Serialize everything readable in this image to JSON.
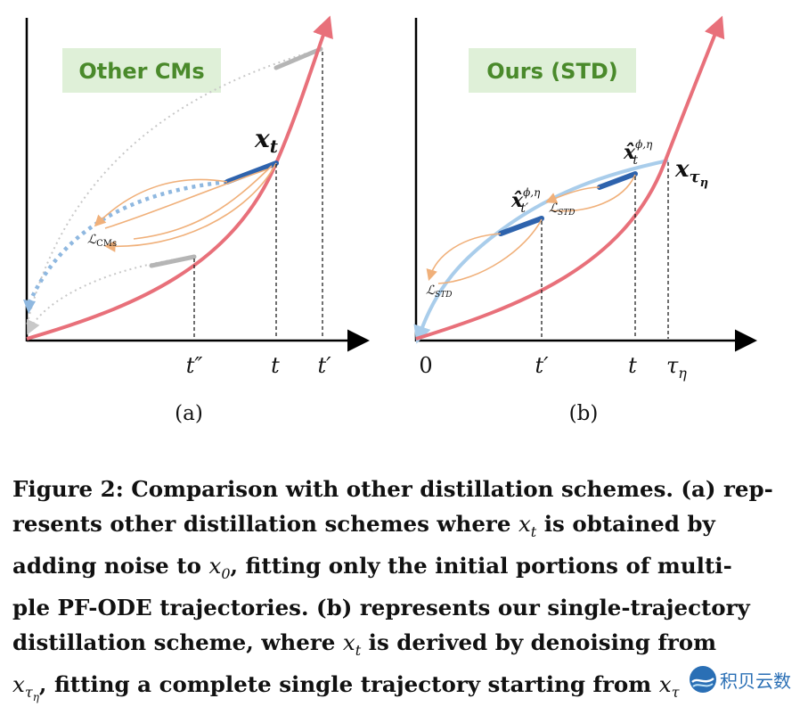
{
  "panel_a": {
    "title": "Other CMs",
    "point_label": "x",
    "point_sub": "t",
    "loss_label": "ℒ",
    "loss_sub": "CMs",
    "ticks": [
      "t″",
      "t",
      "t′"
    ],
    "caption_label": "(a)"
  },
  "panel_b": {
    "title": "Ours (STD)",
    "point_label": "x",
    "point_sub": "τ",
    "point_subsub": "η",
    "est1_label": "x̂",
    "est1_sup": "ϕ,η",
    "est1_sub": "t′",
    "est2_label": "x̂",
    "est2_sup": "ϕ,η",
    "est2_sub": "t",
    "loss_label": "ℒ",
    "loss_sub": "STD",
    "ticks": [
      "0",
      "t′",
      "t",
      "τ"
    ],
    "tau_sub": "η",
    "caption_label": "(b)"
  },
  "caption": {
    "line1_a": "Figure 2: Comparison with other distillation schemes. (a) rep-",
    "line2_a": "resents other distillation schemes where ",
    "line2_m": "x",
    "line2_s": "t",
    "line2_b": " is obtained by",
    "line3_a": "adding noise to ",
    "line3_m": "x",
    "line3_s": "0",
    "line3_b": ", fitting only the initial portions of multi-",
    "line4": "ple PF-ODE trajectories. (b) represents our single-trajectory",
    "line5_a": "distillation scheme, where ",
    "line5_m": "x",
    "line5_s": "t",
    "line5_b": " is derived by denoising from",
    "line6_m": "x",
    "line6_s": "τ",
    "line6_ss": "η",
    "line6_b": ", fitting a complete single trajectory starting from ",
    "line6_c": "x",
    "line6_cs": "τ"
  },
  "watermark": {
    "text": "积贝云数"
  },
  "colors": {
    "red_curve": "#e8707a",
    "blue_segment": "#2e63ad",
    "light_blue": "#a9cdeb",
    "orange": "#f0b07a",
    "gray": "#b5b5b5",
    "title_bg": "#dff0d8",
    "title_text": "#4a8a2b"
  }
}
